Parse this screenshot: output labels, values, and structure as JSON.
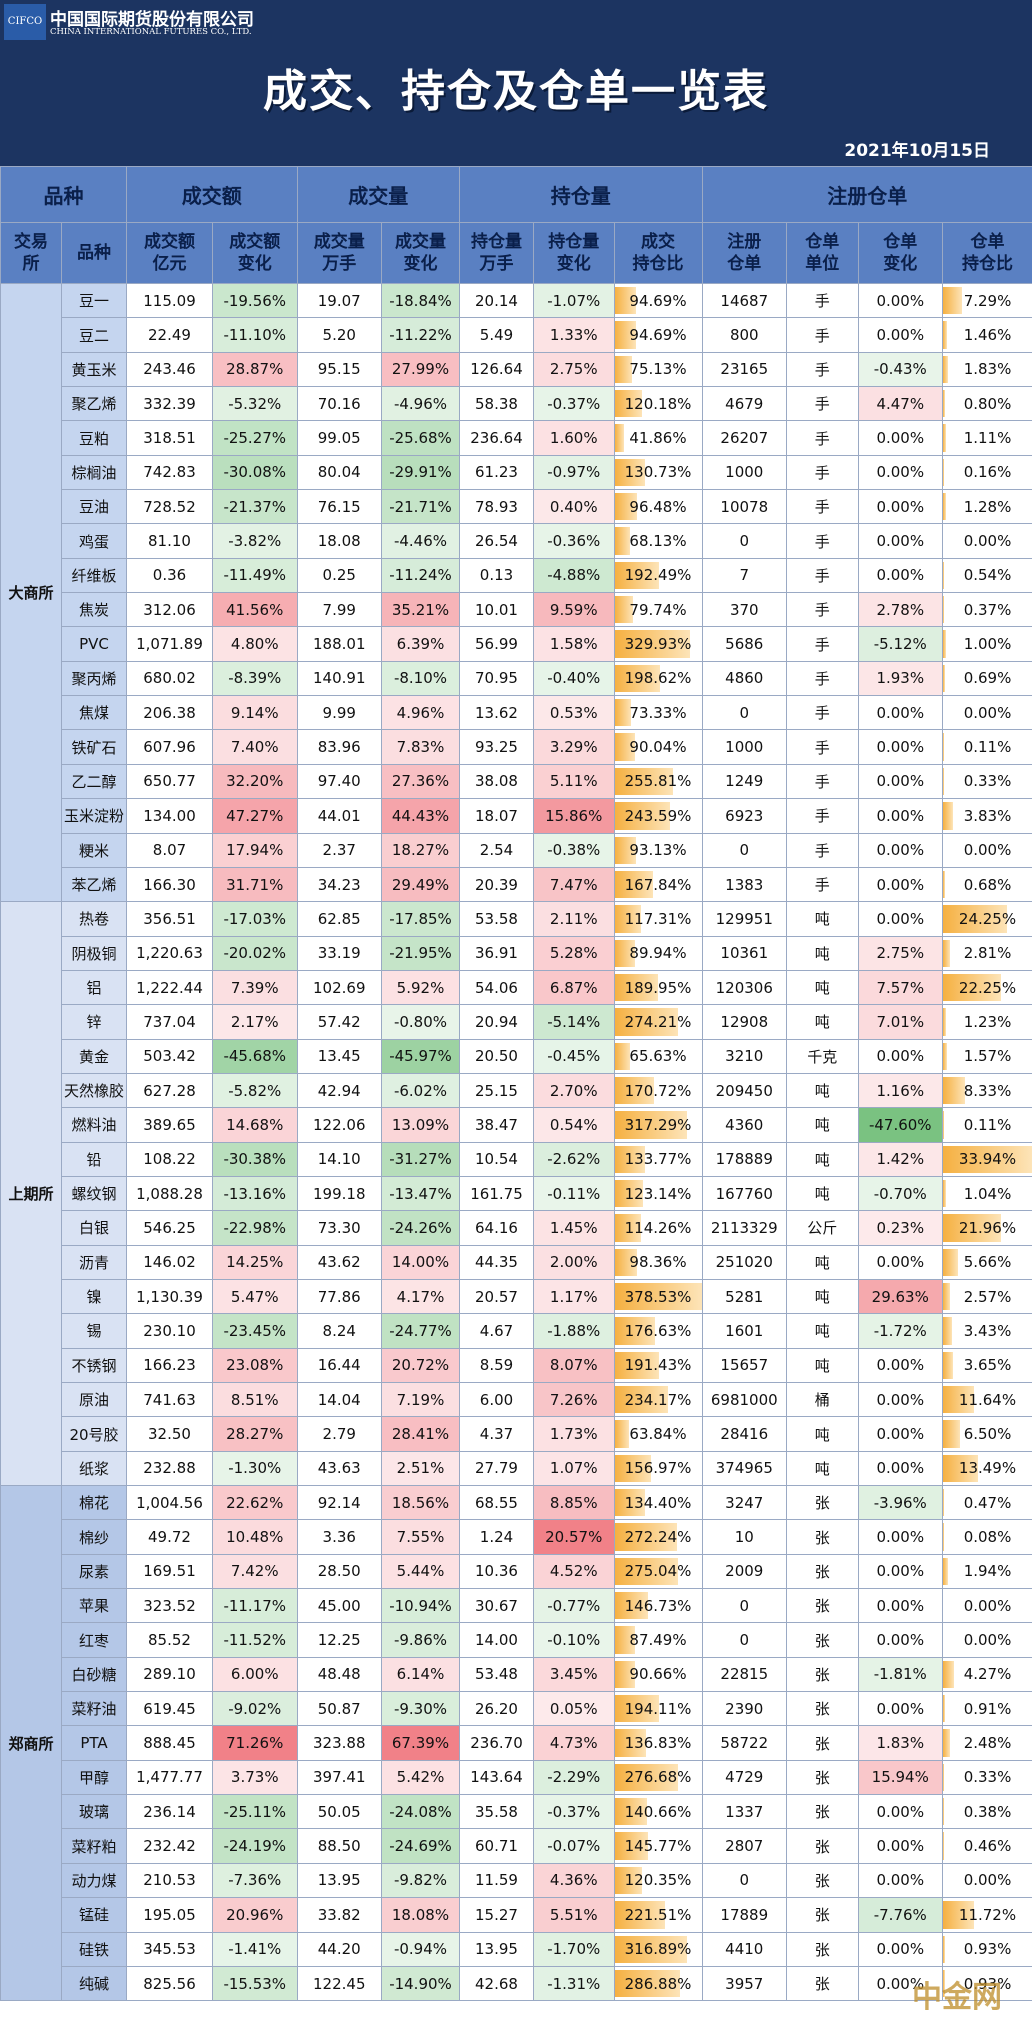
{
  "header": {
    "logo": "CIFCO",
    "company_cn": "中国国际期货股份有限公司",
    "company_en": "CHINA INTERNATIONAL FUTURES CO., LTD.",
    "title": "成交、持仓及仓单一览表",
    "date": "2021年10月15日"
  },
  "table": {
    "group_headers": [
      {
        "label": "品种",
        "span": 2
      },
      {
        "label": "成交额",
        "span": 2
      },
      {
        "label": "成交量",
        "span": 2
      },
      {
        "label": "持仓量",
        "span": 3
      },
      {
        "label": "注册仓单",
        "span": 4
      }
    ],
    "column_headers": [
      [
        "交易",
        "所"
      ],
      [
        "品种"
      ],
      [
        "成交额",
        "亿元"
      ],
      [
        "成交额",
        "变化"
      ],
      [
        "成交量",
        "万手"
      ],
      [
        "成交量",
        "变化"
      ],
      [
        "持仓量",
        "万手"
      ],
      [
        "持仓量",
        "变化"
      ],
      [
        "成交",
        "持仓比"
      ],
      [
        "注册",
        "仓单"
      ],
      [
        "仓单",
        "单位"
      ],
      [
        "仓单",
        "变化"
      ],
      [
        "仓单",
        "持仓比"
      ]
    ],
    "groups": [
      {
        "exchange": "大商所",
        "color": "#c5d5ef",
        "rows": [
          [
            "豆一",
            "115.09",
            "-19.56%",
            "19.07",
            "-18.84%",
            "20.14",
            "-1.07%",
            "94.69%",
            "14687",
            "手",
            "0.00%",
            "7.29%"
          ],
          [
            "豆二",
            "22.49",
            "-11.10%",
            "5.20",
            "-11.22%",
            "5.49",
            "1.33%",
            "94.69%",
            "800",
            "手",
            "0.00%",
            "1.46%"
          ],
          [
            "黄玉米",
            "243.46",
            "28.87%",
            "95.15",
            "27.99%",
            "126.64",
            "2.75%",
            "75.13%",
            "23165",
            "手",
            "-0.43%",
            "1.83%"
          ],
          [
            "聚乙烯",
            "332.39",
            "-5.32%",
            "70.16",
            "-4.96%",
            "58.38",
            "-0.37%",
            "120.18%",
            "4679",
            "手",
            "4.47%",
            "0.80%"
          ],
          [
            "豆粕",
            "318.51",
            "-25.27%",
            "99.05",
            "-25.68%",
            "236.64",
            "1.60%",
            "41.86%",
            "26207",
            "手",
            "0.00%",
            "1.11%"
          ],
          [
            "棕榈油",
            "742.83",
            "-30.08%",
            "80.04",
            "-29.91%",
            "61.23",
            "-0.97%",
            "130.73%",
            "1000",
            "手",
            "0.00%",
            "0.16%"
          ],
          [
            "豆油",
            "728.52",
            "-21.37%",
            "76.15",
            "-21.71%",
            "78.93",
            "0.40%",
            "96.48%",
            "10078",
            "手",
            "0.00%",
            "1.28%"
          ],
          [
            "鸡蛋",
            "81.10",
            "-3.82%",
            "18.08",
            "-4.46%",
            "26.54",
            "-0.36%",
            "68.13%",
            "0",
            "手",
            "0.00%",
            "0.00%"
          ],
          [
            "纤维板",
            "0.36",
            "-11.49%",
            "0.25",
            "-11.24%",
            "0.13",
            "-4.88%",
            "192.49%",
            "7",
            "手",
            "0.00%",
            "0.54%"
          ],
          [
            "焦炭",
            "312.06",
            "41.56%",
            "7.99",
            "35.21%",
            "10.01",
            "9.59%",
            "79.74%",
            "370",
            "手",
            "2.78%",
            "0.37%"
          ],
          [
            "PVC",
            "1,071.89",
            "4.80%",
            "188.01",
            "6.39%",
            "56.99",
            "1.58%",
            "329.93%",
            "5686",
            "手",
            "-5.12%",
            "1.00%"
          ],
          [
            "聚丙烯",
            "680.02",
            "-8.39%",
            "140.91",
            "-8.10%",
            "70.95",
            "-0.40%",
            "198.62%",
            "4860",
            "手",
            "1.93%",
            "0.69%"
          ],
          [
            "焦煤",
            "206.38",
            "9.14%",
            "9.99",
            "4.96%",
            "13.62",
            "0.53%",
            "73.33%",
            "0",
            "手",
            "0.00%",
            "0.00%"
          ],
          [
            "铁矿石",
            "607.96",
            "7.40%",
            "83.96",
            "7.83%",
            "93.25",
            "3.29%",
            "90.04%",
            "1000",
            "手",
            "0.00%",
            "0.11%"
          ],
          [
            "乙二醇",
            "650.77",
            "32.20%",
            "97.40",
            "27.36%",
            "38.08",
            "5.11%",
            "255.81%",
            "1249",
            "手",
            "0.00%",
            "0.33%"
          ],
          [
            "玉米淀粉",
            "134.00",
            "47.27%",
            "44.01",
            "44.43%",
            "18.07",
            "15.86%",
            "243.59%",
            "6923",
            "手",
            "0.00%",
            "3.83%"
          ],
          [
            "粳米",
            "8.07",
            "17.94%",
            "2.37",
            "18.27%",
            "2.54",
            "-0.38%",
            "93.13%",
            "0",
            "手",
            "0.00%",
            "0.00%"
          ],
          [
            "苯乙烯",
            "166.30",
            "31.71%",
            "34.23",
            "29.49%",
            "20.39",
            "7.47%",
            "167.84%",
            "1383",
            "手",
            "0.00%",
            "0.68%"
          ]
        ]
      },
      {
        "exchange": "上期所",
        "color": "#d9e2f3",
        "rows": [
          [
            "热卷",
            "356.51",
            "-17.03%",
            "62.85",
            "-17.85%",
            "53.58",
            "2.11%",
            "117.31%",
            "129951",
            "吨",
            "0.00%",
            "24.25%"
          ],
          [
            "阴极铜",
            "1,220.63",
            "-20.02%",
            "33.19",
            "-21.95%",
            "36.91",
            "5.28%",
            "89.94%",
            "10361",
            "吨",
            "2.75%",
            "2.81%"
          ],
          [
            "铝",
            "1,222.44",
            "7.39%",
            "102.69",
            "5.92%",
            "54.06",
            "6.87%",
            "189.95%",
            "120306",
            "吨",
            "7.57%",
            "22.25%"
          ],
          [
            "锌",
            "737.04",
            "2.17%",
            "57.42",
            "-0.80%",
            "20.94",
            "-5.14%",
            "274.21%",
            "12908",
            "吨",
            "7.01%",
            "1.23%"
          ],
          [
            "黄金",
            "503.42",
            "-45.68%",
            "13.45",
            "-45.97%",
            "20.50",
            "-0.45%",
            "65.63%",
            "3210",
            "千克",
            "0.00%",
            "1.57%"
          ],
          [
            "天然橡胶",
            "627.28",
            "-5.82%",
            "42.94",
            "-6.02%",
            "25.15",
            "2.70%",
            "170.72%",
            "209450",
            "吨",
            "1.16%",
            "8.33%"
          ],
          [
            "燃料油",
            "389.65",
            "14.68%",
            "122.06",
            "13.09%",
            "38.47",
            "0.54%",
            "317.29%",
            "4360",
            "吨",
            "-47.60%",
            "0.11%"
          ],
          [
            "铅",
            "108.22",
            "-30.38%",
            "14.10",
            "-31.27%",
            "10.54",
            "-2.62%",
            "133.77%",
            "178889",
            "吨",
            "1.42%",
            "33.94%"
          ],
          [
            "螺纹钢",
            "1,088.28",
            "-13.16%",
            "199.18",
            "-13.47%",
            "161.75",
            "-0.11%",
            "123.14%",
            "167760",
            "吨",
            "-0.70%",
            "1.04%"
          ],
          [
            "白银",
            "546.25",
            "-22.98%",
            "73.30",
            "-24.26%",
            "64.16",
            "1.45%",
            "114.26%",
            "2113329",
            "公斤",
            "0.23%",
            "21.96%"
          ],
          [
            "沥青",
            "146.02",
            "14.25%",
            "43.62",
            "14.00%",
            "44.35",
            "2.00%",
            "98.36%",
            "251020",
            "吨",
            "0.00%",
            "5.66%"
          ],
          [
            "镍",
            "1,130.39",
            "5.47%",
            "77.86",
            "4.17%",
            "20.57",
            "1.17%",
            "378.53%",
            "5281",
            "吨",
            "29.63%",
            "2.57%"
          ],
          [
            "锡",
            "230.10",
            "-23.45%",
            "8.24",
            "-24.77%",
            "4.67",
            "-1.88%",
            "176.63%",
            "1601",
            "吨",
            "-1.72%",
            "3.43%"
          ],
          [
            "不锈钢",
            "166.23",
            "23.08%",
            "16.44",
            "20.72%",
            "8.59",
            "8.07%",
            "191.43%",
            "15657",
            "吨",
            "0.00%",
            "3.65%"
          ],
          [
            "原油",
            "741.63",
            "8.51%",
            "14.04",
            "7.19%",
            "6.00",
            "7.26%",
            "234.17%",
            "6981000",
            "桶",
            "0.00%",
            "11.64%"
          ],
          [
            "20号胶",
            "32.50",
            "28.27%",
            "2.79",
            "28.41%",
            "4.37",
            "1.73%",
            "63.84%",
            "28416",
            "吨",
            "0.00%",
            "6.50%"
          ],
          [
            "纸浆",
            "232.88",
            "-1.30%",
            "43.63",
            "2.51%",
            "27.79",
            "1.07%",
            "156.97%",
            "374965",
            "吨",
            "0.00%",
            "13.49%"
          ]
        ]
      },
      {
        "exchange": "郑商所",
        "color": "#b4c7e7",
        "rows": [
          [
            "棉花",
            "1,004.56",
            "22.62%",
            "92.14",
            "18.56%",
            "68.55",
            "8.85%",
            "134.40%",
            "3247",
            "张",
            "-3.96%",
            "0.47%"
          ],
          [
            "棉纱",
            "49.72",
            "10.48%",
            "3.36",
            "7.55%",
            "1.24",
            "20.57%",
            "272.24%",
            "10",
            "张",
            "0.00%",
            "0.08%"
          ],
          [
            "尿素",
            "169.51",
            "7.42%",
            "28.50",
            "5.44%",
            "10.36",
            "4.52%",
            "275.04%",
            "2009",
            "张",
            "0.00%",
            "1.94%"
          ],
          [
            "苹果",
            "323.52",
            "-11.17%",
            "45.00",
            "-10.94%",
            "30.67",
            "-0.77%",
            "146.73%",
            "0",
            "张",
            "0.00%",
            "0.00%"
          ],
          [
            "红枣",
            "85.52",
            "-11.52%",
            "12.25",
            "-9.86%",
            "14.00",
            "-0.10%",
            "87.49%",
            "0",
            "张",
            "0.00%",
            "0.00%"
          ],
          [
            "白砂糖",
            "289.10",
            "6.00%",
            "48.48",
            "6.14%",
            "53.48",
            "3.45%",
            "90.66%",
            "22815",
            "张",
            "-1.81%",
            "4.27%"
          ],
          [
            "菜籽油",
            "619.45",
            "-9.02%",
            "50.87",
            "-9.30%",
            "26.20",
            "0.05%",
            "194.11%",
            "2390",
            "张",
            "0.00%",
            "0.91%"
          ],
          [
            "PTA",
            "888.45",
            "71.26%",
            "323.88",
            "67.39%",
            "236.70",
            "4.73%",
            "136.83%",
            "58722",
            "张",
            "1.83%",
            "2.48%"
          ],
          [
            "甲醇",
            "1,477.77",
            "3.73%",
            "397.41",
            "5.42%",
            "143.64",
            "-2.29%",
            "276.68%",
            "4729",
            "张",
            "15.94%",
            "0.33%"
          ],
          [
            "玻璃",
            "236.14",
            "-25.11%",
            "50.05",
            "-24.08%",
            "35.58",
            "-0.37%",
            "140.66%",
            "1337",
            "张",
            "0.00%",
            "0.38%"
          ],
          [
            "菜籽粕",
            "232.42",
            "-24.19%",
            "88.50",
            "-24.69%",
            "60.71",
            "-0.07%",
            "145.77%",
            "2807",
            "张",
            "0.00%",
            "0.46%"
          ],
          [
            "动力煤",
            "210.53",
            "-7.36%",
            "13.95",
            "-9.82%",
            "11.59",
            "4.36%",
            "120.35%",
            "0",
            "张",
            "0.00%",
            "0.00%"
          ],
          [
            "锰硅",
            "195.05",
            "20.96%",
            "33.82",
            "18.08%",
            "15.27",
            "5.51%",
            "221.51%",
            "17889",
            "张",
            "-7.76%",
            "11.72%"
          ],
          [
            "硅铁",
            "345.53",
            "-1.41%",
            "44.20",
            "-0.94%",
            "13.95",
            "-1.70%",
            "316.89%",
            "4410",
            "张",
            "0.00%",
            "0.93%"
          ],
          [
            "纯碱",
            "825.56",
            "-15.53%",
            "122.45",
            "-14.90%",
            "42.68",
            "-1.31%",
            "286.88%",
            "3957",
            "张",
            "0.00%",
            "0.93%"
          ]
        ]
      }
    ]
  },
  "watermark": "中金网"
}
